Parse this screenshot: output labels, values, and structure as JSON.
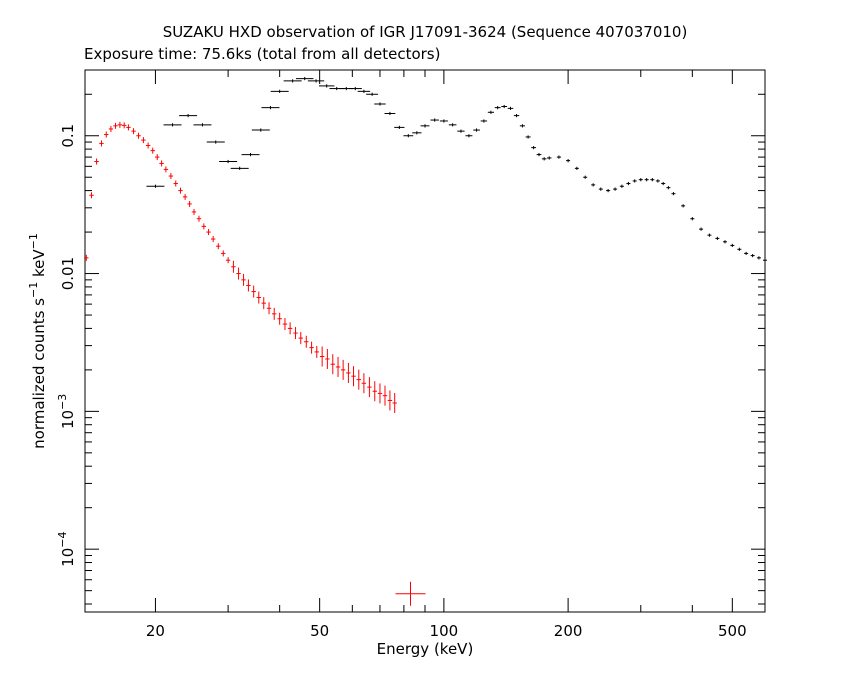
{
  "chart_data": {
    "type": "scatter",
    "title": "SUZAKU HXD observation of IGR J17091-3624 (Sequence 407037010)",
    "subtitle": "Exposure time: 75.6ks (total from all detectors)",
    "xlabel": "Energy (keV)",
    "ylabel": {
      "base": "normalized counts s",
      "exp1": "−1",
      "mid": " keV",
      "exp2": "−1"
    },
    "xscale": "log",
    "yscale": "log",
    "xlim": [
      13.5,
      600
    ],
    "ylim": [
      3.5e-05,
      0.3
    ],
    "grid": false,
    "legend": "none",
    "x_ticks": [
      {
        "value": 20,
        "label": "20"
      },
      {
        "value": 50,
        "label": "50"
      },
      {
        "value": 100,
        "label": "100"
      },
      {
        "value": 200,
        "label": "200"
      },
      {
        "value": 500,
        "label": "500"
      }
    ],
    "y_ticks": [
      {
        "value": 0.1,
        "label": "0.1"
      },
      {
        "value": 0.01,
        "label": "0.01"
      },
      {
        "value": 0.001,
        "label_base": "10",
        "label_exp": "−3"
      },
      {
        "value": 0.0001,
        "label_base": "10",
        "label_exp": "−4"
      }
    ],
    "series": [
      {
        "detector": "PIN",
        "color": "#ff0000",
        "x": [
          13.6,
          14.0,
          14.4,
          14.8,
          15.2,
          15.6,
          16.0,
          16.4,
          16.8,
          17.2,
          17.7,
          18.2,
          18.7,
          19.2,
          19.7,
          20.2,
          20.7,
          21.2,
          21.8,
          22.4,
          23.0,
          23.6,
          24.2,
          24.8,
          25.5,
          26.2,
          26.9,
          27.6,
          28.4,
          29.2,
          30.0,
          30.9,
          31.8,
          32.7,
          33.6,
          34.6,
          35.6,
          36.6,
          37.7,
          38.8,
          40.0,
          41.2,
          42.4,
          43.7,
          45.0,
          46.4,
          47.8,
          49.2,
          50.7,
          52.2,
          53.8,
          55.4,
          57.0,
          58.7,
          60.4,
          62.2,
          64.0,
          66.0,
          68.0,
          70.0,
          72.0,
          74.0,
          76.0,
          83.0
        ],
        "y": [
          0.013,
          0.037,
          0.065,
          0.088,
          0.102,
          0.112,
          0.118,
          0.12,
          0.119,
          0.115,
          0.108,
          0.1,
          0.093,
          0.085,
          0.078,
          0.07,
          0.063,
          0.057,
          0.051,
          0.045,
          0.04,
          0.036,
          0.032,
          0.028,
          0.025,
          0.022,
          0.02,
          0.0178,
          0.0158,
          0.014,
          0.0125,
          0.0112,
          0.01,
          0.009,
          0.0082,
          0.0074,
          0.0067,
          0.0061,
          0.0056,
          0.0051,
          0.0047,
          0.0043,
          0.004,
          0.0037,
          0.0034,
          0.0032,
          0.0029,
          0.0027,
          0.0025,
          0.0024,
          0.0022,
          0.0021,
          0.002,
          0.0019,
          0.0018,
          0.0017,
          0.0016,
          0.0015,
          0.0014,
          0.00135,
          0.0013,
          0.0012,
          0.00115,
          4.75e-05
        ]
      },
      {
        "detector": "GSO",
        "color": "#000000",
        "x": [
          20,
          22,
          24,
          26,
          28,
          30,
          32,
          34,
          36,
          38,
          40,
          43,
          46,
          49,
          52,
          55,
          58,
          61,
          64,
          67,
          70,
          74,
          78,
          82,
          86,
          90,
          95,
          100,
          105,
          110,
          115,
          120,
          125,
          130,
          135,
          140,
          145,
          150,
          155,
          160,
          165,
          170,
          175,
          180,
          190,
          200,
          210,
          220,
          230,
          240,
          250,
          260,
          270,
          280,
          290,
          300,
          310,
          320,
          330,
          340,
          350,
          360,
          380,
          400,
          420,
          440,
          460,
          480,
          500,
          520,
          540,
          560,
          580,
          600
        ],
        "y": [
          0.043,
          0.12,
          0.14,
          0.12,
          0.09,
          0.065,
          0.058,
          0.073,
          0.11,
          0.16,
          0.21,
          0.25,
          0.26,
          0.25,
          0.23,
          0.22,
          0.22,
          0.22,
          0.21,
          0.2,
          0.17,
          0.145,
          0.115,
          0.1,
          0.105,
          0.118,
          0.13,
          0.128,
          0.12,
          0.108,
          0.1,
          0.11,
          0.128,
          0.148,
          0.16,
          0.163,
          0.158,
          0.14,
          0.118,
          0.098,
          0.082,
          0.073,
          0.068,
          0.069,
          0.07,
          0.066,
          0.058,
          0.05,
          0.044,
          0.041,
          0.04,
          0.041,
          0.043,
          0.045,
          0.047,
          0.048,
          0.048,
          0.048,
          0.047,
          0.045,
          0.042,
          0.038,
          0.031,
          0.025,
          0.021,
          0.019,
          0.018,
          0.017,
          0.016,
          0.015,
          0.014,
          0.0135,
          0.013,
          0.0125
        ]
      }
    ]
  }
}
